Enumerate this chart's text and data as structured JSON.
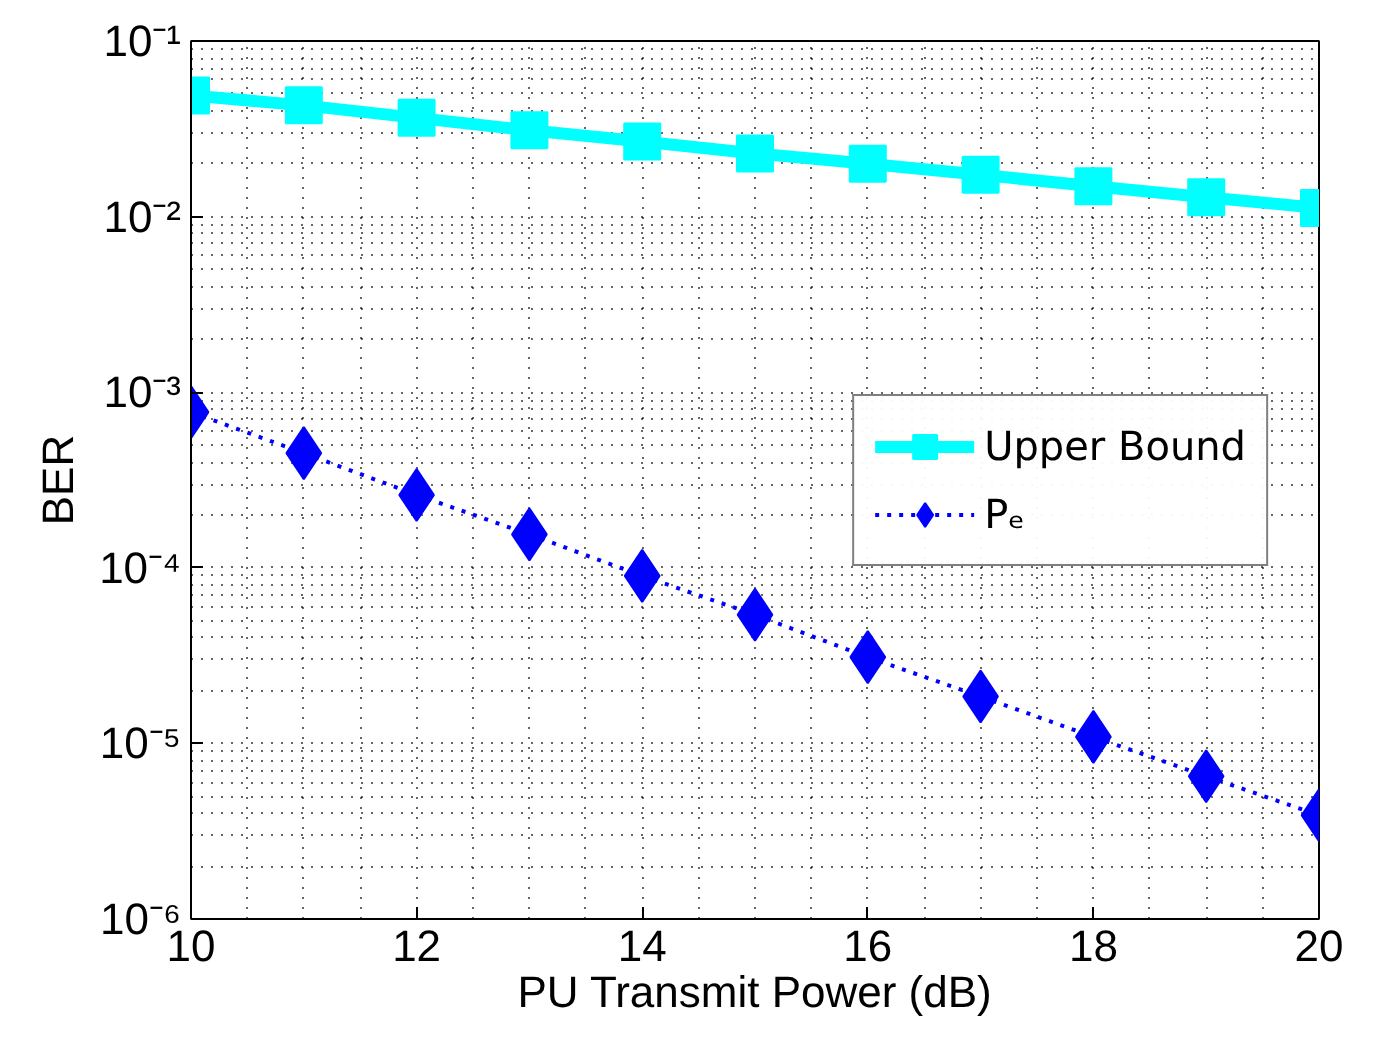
{
  "chart_data": {
    "type": "line",
    "xlabel": "PU Transmit Power (dB)",
    "ylabel": "BER",
    "log": "y",
    "grid": true,
    "legend": "right",
    "x": [
      10,
      11,
      12,
      13,
      14,
      15,
      16,
      17,
      18,
      19,
      20
    ],
    "xlim": [
      10,
      20
    ],
    "xticks": [
      10,
      12,
      14,
      16,
      18,
      20
    ],
    "ylim": [
      1e-06,
      0.1
    ],
    "yticks": [
      {
        "value": 1e-06,
        "label": "10⁻⁶"
      },
      {
        "value": 1e-05,
        "label": "10⁻⁵"
      },
      {
        "value": 0.0001,
        "label": "10⁻⁴"
      },
      {
        "value": 0.001,
        "label": "10⁻³"
      },
      {
        "value": 0.01,
        "label": "10⁻²"
      },
      {
        "value": 0.1,
        "label": "10⁻¹"
      }
    ],
    "series": [
      {
        "name": "Upper Bound",
        "color": "#00ffff",
        "marker": "square",
        "line_style": "solid",
        "values": [
          0.049,
          0.043,
          0.0365,
          0.031,
          0.0268,
          0.0229,
          0.02,
          0.0173,
          0.0149,
          0.0129,
          0.0112
        ]
      },
      {
        "name": "Pₑ",
        "color": "#0000ff",
        "marker": "diamond",
        "line_style": "dotted",
        "values": [
          0.00077,
          0.00045,
          0.00026,
          0.000155,
          9e-05,
          5.4e-05,
          3.1e-05,
          1.85e-05,
          1.09e-05,
          6.5e-06,
          3.9e-06
        ]
      }
    ]
  }
}
